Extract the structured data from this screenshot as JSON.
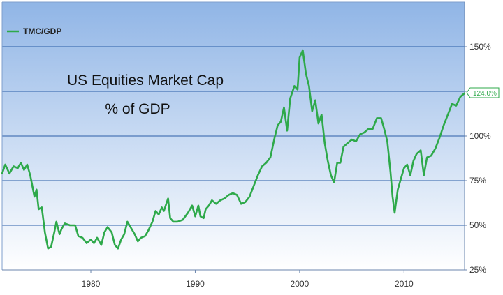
{
  "chart_data": {
    "type": "line",
    "title": "US Equities Market Cap",
    "subtitle": "% of GDP",
    "legend": {
      "label": "TMC/GDP",
      "position": "top-left"
    },
    "last_value_label": "124.0%",
    "x_ticks": [
      "1980",
      "1990",
      "2000",
      "2010"
    ],
    "y_ticks": [
      "25%",
      "50%",
      "75%",
      "100%",
      "125%",
      "150%"
    ],
    "xlim": [
      1971.5,
      2015.8
    ],
    "ylim": [
      25,
      175
    ],
    "grid": "horizontal",
    "y_axis_position": "right",
    "colors": {
      "line": "#2ea94a",
      "bg_top": "#90b5e6",
      "bg_bottom": "#ffffff",
      "grid": "#2c5fa8"
    },
    "series": [
      {
        "name": "TMC/GDP",
        "points": [
          [
            1971.5,
            79
          ],
          [
            1971.8,
            84
          ],
          [
            1972.2,
            79
          ],
          [
            1972.6,
            83
          ],
          [
            1973.0,
            82
          ],
          [
            1973.3,
            85
          ],
          [
            1973.6,
            81
          ],
          [
            1973.9,
            84
          ],
          [
            1974.2,
            78
          ],
          [
            1974.6,
            66
          ],
          [
            1974.8,
            70
          ],
          [
            1975.0,
            59
          ],
          [
            1975.3,
            60
          ],
          [
            1975.6,
            46
          ],
          [
            1975.9,
            37
          ],
          [
            1976.2,
            38
          ],
          [
            1976.5,
            46
          ],
          [
            1976.7,
            52
          ],
          [
            1977.0,
            45
          ],
          [
            1977.2,
            48
          ],
          [
            1977.5,
            51
          ],
          [
            1978.0,
            50
          ],
          [
            1978.5,
            50
          ],
          [
            1978.8,
            44
          ],
          [
            1979.2,
            43
          ],
          [
            1979.6,
            40
          ],
          [
            1980.0,
            42
          ],
          [
            1980.3,
            40
          ],
          [
            1980.6,
            43
          ],
          [
            1981.0,
            39
          ],
          [
            1981.3,
            46
          ],
          [
            1981.6,
            49
          ],
          [
            1982.0,
            46
          ],
          [
            1982.3,
            39
          ],
          [
            1982.6,
            37
          ],
          [
            1982.9,
            42
          ],
          [
            1983.2,
            45
          ],
          [
            1983.5,
            52
          ],
          [
            1983.9,
            48
          ],
          [
            1984.2,
            45
          ],
          [
            1984.5,
            41
          ],
          [
            1984.8,
            43
          ],
          [
            1985.2,
            44
          ],
          [
            1985.5,
            47
          ],
          [
            1985.9,
            52
          ],
          [
            1986.2,
            58
          ],
          [
            1986.5,
            56
          ],
          [
            1986.8,
            60
          ],
          [
            1987.0,
            58
          ],
          [
            1987.4,
            65
          ],
          [
            1987.6,
            54
          ],
          [
            1987.9,
            52
          ],
          [
            1988.3,
            52
          ],
          [
            1988.8,
            53
          ],
          [
            1989.3,
            57
          ],
          [
            1989.7,
            61
          ],
          [
            1990.0,
            55
          ],
          [
            1990.3,
            61
          ],
          [
            1990.5,
            55
          ],
          [
            1990.8,
            54
          ],
          [
            1991.0,
            59
          ],
          [
            1991.3,
            61
          ],
          [
            1991.6,
            64
          ],
          [
            1992.0,
            62
          ],
          [
            1992.4,
            64
          ],
          [
            1992.8,
            65
          ],
          [
            1993.2,
            67
          ],
          [
            1993.6,
            68
          ],
          [
            1994.0,
            67
          ],
          [
            1994.4,
            62
          ],
          [
            1994.8,
            63
          ],
          [
            1995.2,
            66
          ],
          [
            1995.6,
            72
          ],
          [
            1996.0,
            78
          ],
          [
            1996.4,
            83
          ],
          [
            1996.8,
            85
          ],
          [
            1997.2,
            88
          ],
          [
            1997.6,
            99
          ],
          [
            1997.9,
            106
          ],
          [
            1998.2,
            108
          ],
          [
            1998.5,
            116
          ],
          [
            1998.8,
            103
          ],
          [
            1999.1,
            121
          ],
          [
            1999.5,
            128
          ],
          [
            1999.8,
            126
          ],
          [
            2000.0,
            144
          ],
          [
            2000.3,
            148
          ],
          [
            2000.6,
            135
          ],
          [
            2000.9,
            128
          ],
          [
            2001.2,
            114
          ],
          [
            2001.5,
            120
          ],
          [
            2001.8,
            107
          ],
          [
            2002.1,
            112
          ],
          [
            2002.4,
            96
          ],
          [
            2002.7,
            86
          ],
          [
            2003.0,
            78
          ],
          [
            2003.3,
            74
          ],
          [
            2003.6,
            85
          ],
          [
            2003.9,
            85
          ],
          [
            2004.2,
            94
          ],
          [
            2004.6,
            96
          ],
          [
            2005.0,
            98
          ],
          [
            2005.4,
            97
          ],
          [
            2005.8,
            101
          ],
          [
            2006.2,
            102
          ],
          [
            2006.6,
            104
          ],
          [
            2007.0,
            104
          ],
          [
            2007.4,
            110
          ],
          [
            2007.8,
            110
          ],
          [
            2008.1,
            104
          ],
          [
            2008.4,
            97
          ],
          [
            2008.7,
            80
          ],
          [
            2008.9,
            66
          ],
          [
            2009.1,
            57
          ],
          [
            2009.4,
            70
          ],
          [
            2009.7,
            76
          ],
          [
            2010.0,
            82
          ],
          [
            2010.3,
            84
          ],
          [
            2010.6,
            78
          ],
          [
            2010.9,
            86
          ],
          [
            2011.2,
            90
          ],
          [
            2011.6,
            92
          ],
          [
            2011.9,
            78
          ],
          [
            2012.2,
            88
          ],
          [
            2012.6,
            89
          ],
          [
            2013.0,
            93
          ],
          [
            2013.4,
            99
          ],
          [
            2013.8,
            106
          ],
          [
            2014.2,
            112
          ],
          [
            2014.6,
            118
          ],
          [
            2015.0,
            117
          ],
          [
            2015.4,
            122
          ],
          [
            2015.8,
            124
          ]
        ]
      }
    ]
  }
}
